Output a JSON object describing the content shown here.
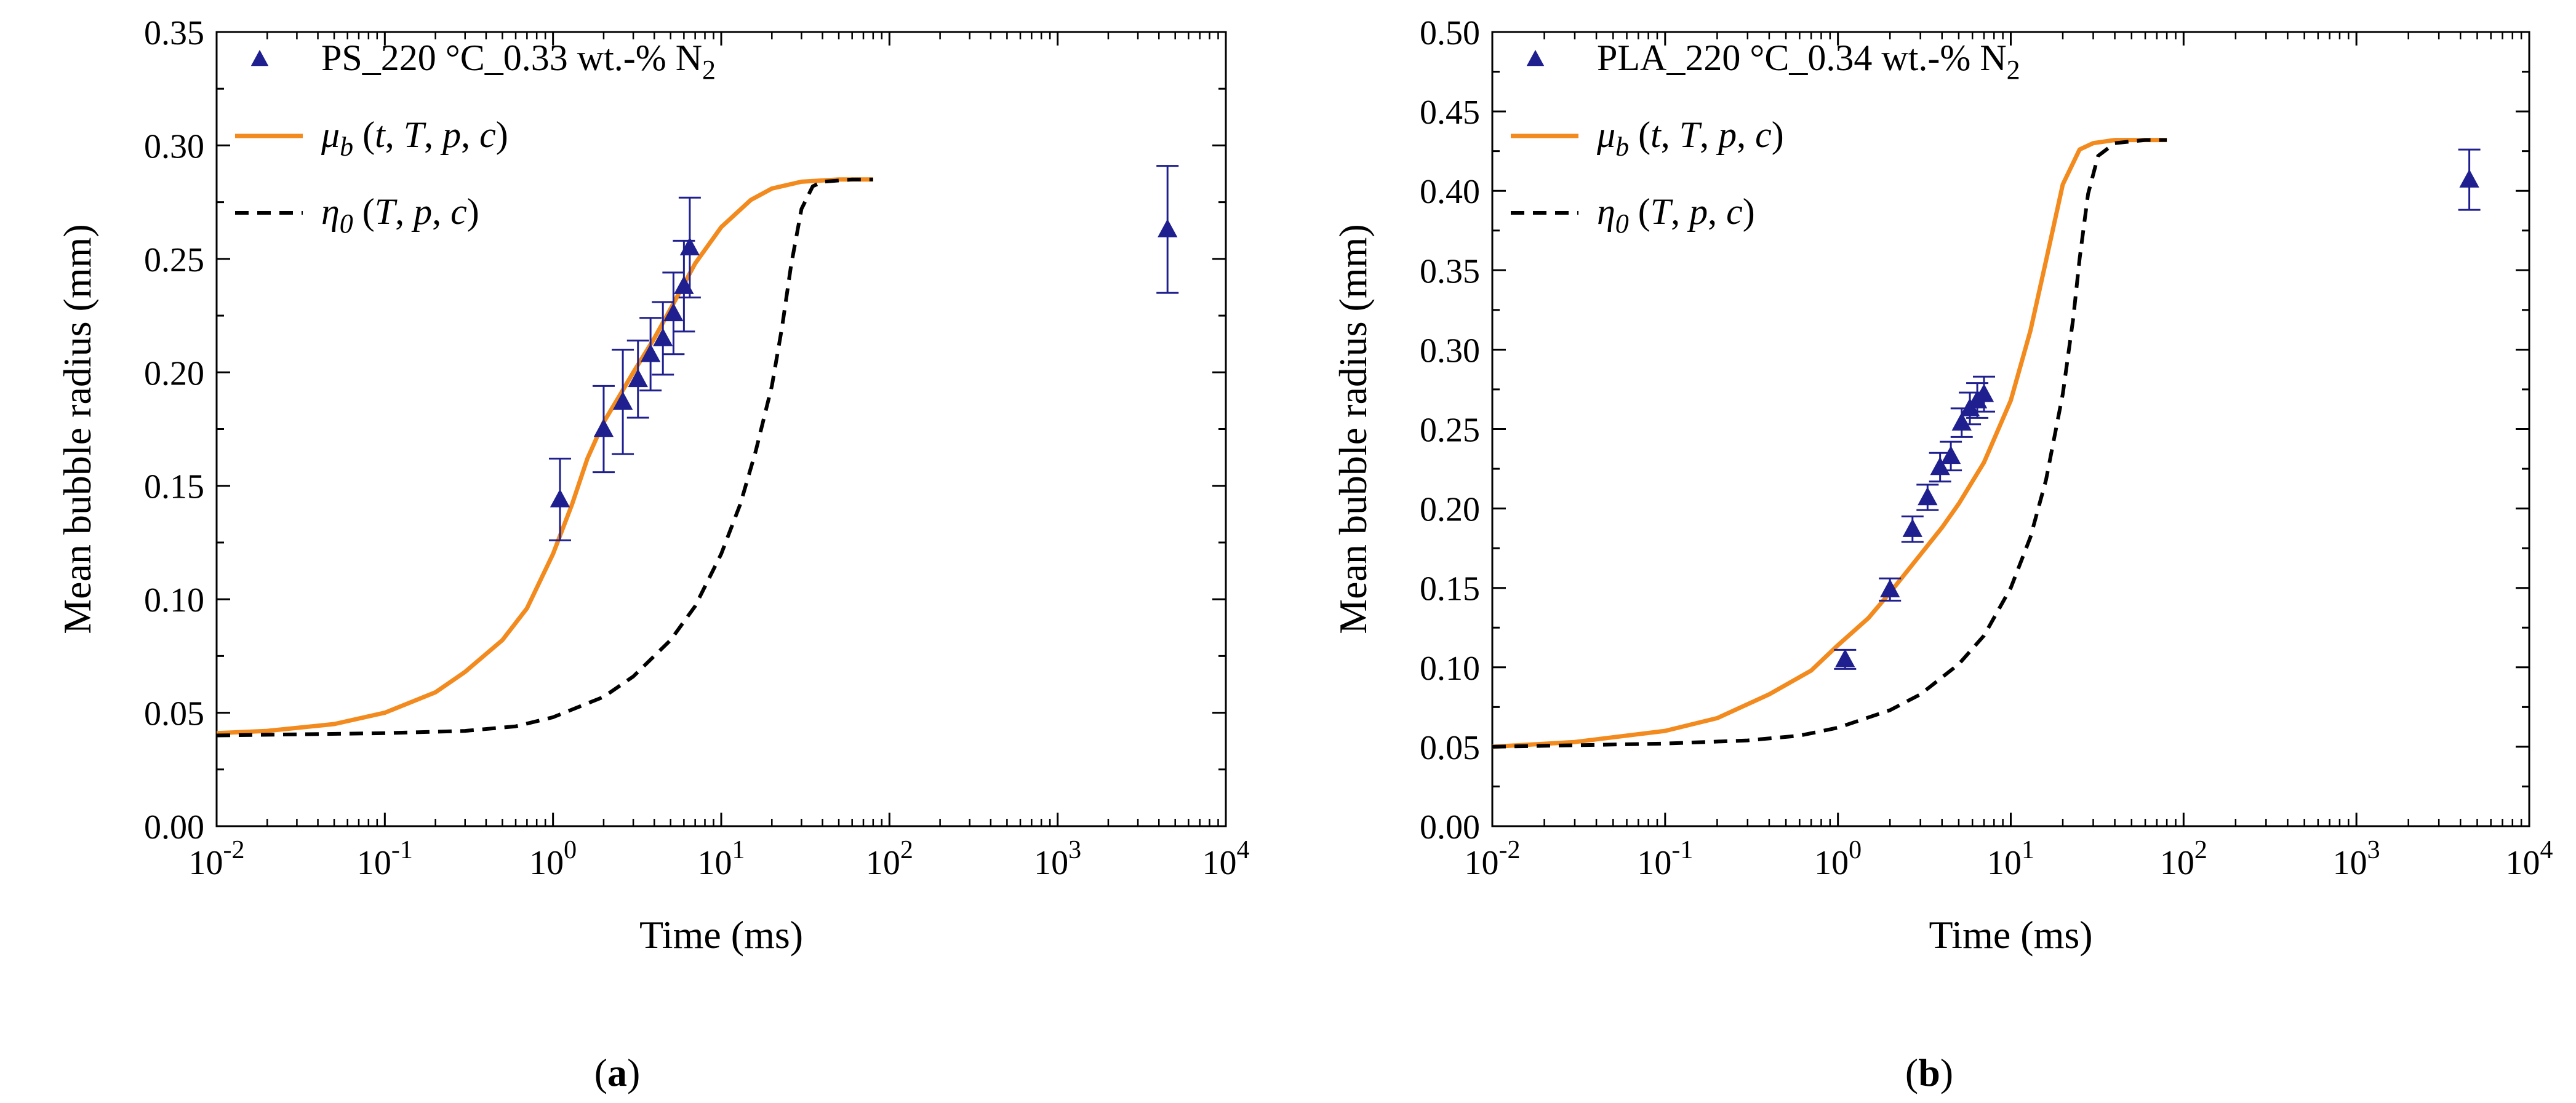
{
  "chart_data": [
    {
      "type": "scatter",
      "panel_label": "a",
      "xlabel": "Time (ms)",
      "ylabel": "Mean bubble radius (mm)",
      "xscale": "log",
      "xlim": [
        0.01,
        10000
      ],
      "ylim": [
        0,
        0.35
      ],
      "x_ticks": [
        0.01,
        0.1,
        1,
        10,
        100,
        1000,
        10000
      ],
      "y_ticks": [
        0.0,
        0.05,
        0.1,
        0.15,
        0.2,
        0.25,
        0.3,
        0.35
      ],
      "y_tick_labels": [
        "0.00",
        "0.05",
        "0.10",
        "0.15",
        "0.20",
        "0.25",
        "0.30",
        "0.35"
      ],
      "legend_position": "top-left",
      "series": [
        {
          "name": "PS_220 °C_0.33 wt.-% N2",
          "kind": "points",
          "marker": "triangle",
          "color": "#1f1f8f",
          "x": [
            1.1,
            2.0,
            2.6,
            3.2,
            3.8,
            4.5,
            5.2,
            6.0,
            6.5,
            4500
          ],
          "y": [
            0.144,
            0.175,
            0.187,
            0.197,
            0.208,
            0.215,
            0.226,
            0.238,
            0.255,
            0.263
          ],
          "yerr": [
            0.018,
            0.019,
            0.023,
            0.017,
            0.016,
            0.016,
            0.018,
            0.02,
            0.022,
            0.028
          ]
        },
        {
          "name": "μb (t, T, p, c)",
          "kind": "line",
          "style": "solid",
          "color": "#f28a1e",
          "x": [
            0.01,
            0.02,
            0.05,
            0.1,
            0.2,
            0.3,
            0.5,
            0.7,
            1.0,
            1.3,
            1.6,
            2.0,
            2.5,
            3.0,
            4.0,
            5.0,
            7.0,
            10,
            15,
            20,
            30,
            50,
            80
          ],
          "y": [
            0.041,
            0.042,
            0.045,
            0.05,
            0.059,
            0.068,
            0.082,
            0.096,
            0.12,
            0.142,
            0.162,
            0.178,
            0.19,
            0.2,
            0.215,
            0.228,
            0.248,
            0.264,
            0.276,
            0.281,
            0.284,
            0.285,
            0.285
          ]
        },
        {
          "name": "η0 (T, p, c)",
          "kind": "line",
          "style": "dashed",
          "color": "#000000",
          "x": [
            0.01,
            0.1,
            0.3,
            0.6,
            1,
            2,
            3,
            5,
            7,
            10,
            13,
            16,
            20,
            23,
            26,
            30,
            35,
            40,
            60,
            80
          ],
          "y": [
            0.04,
            0.041,
            0.042,
            0.044,
            0.048,
            0.057,
            0.066,
            0.082,
            0.097,
            0.12,
            0.142,
            0.165,
            0.194,
            0.22,
            0.247,
            0.272,
            0.282,
            0.284,
            0.285,
            0.285
          ]
        }
      ]
    },
    {
      "type": "scatter",
      "panel_label": "b",
      "xlabel": "Time (ms)",
      "ylabel": "Mean bubble radius (mm)",
      "xscale": "log",
      "xlim": [
        0.01,
        10000
      ],
      "ylim": [
        0,
        0.5
      ],
      "x_ticks": [
        0.01,
        0.1,
        1,
        10,
        100,
        1000,
        10000
      ],
      "y_ticks": [
        0.0,
        0.05,
        0.1,
        0.15,
        0.2,
        0.25,
        0.3,
        0.35,
        0.4,
        0.45,
        0.5
      ],
      "y_tick_labels": [
        "0.00",
        "0.05",
        "0.10",
        "0.15",
        "0.20",
        "0.25",
        "0.30",
        "0.35",
        "0.40",
        "0.45",
        "0.50"
      ],
      "legend_position": "top-left",
      "series": [
        {
          "name": "PLA_220 °C_0.34 wt.-% N2",
          "kind": "points",
          "marker": "triangle",
          "color": "#1f1f8f",
          "x": [
            1.1,
            2.0,
            2.7,
            3.3,
            3.9,
            4.5,
            5.2,
            5.8,
            6.4,
            7.0,
            4500
          ],
          "y": [
            0.105,
            0.149,
            0.187,
            0.207,
            0.226,
            0.233,
            0.254,
            0.263,
            0.268,
            0.272,
            0.407
          ],
          "yerr": [
            0.006,
            0.007,
            0.008,
            0.008,
            0.009,
            0.009,
            0.009,
            0.01,
            0.011,
            0.011,
            0.019
          ]
        },
        {
          "name": "μb (t, T, p, c)",
          "kind": "line",
          "style": "solid",
          "color": "#f28a1e",
          "x": [
            0.01,
            0.03,
            0.1,
            0.2,
            0.4,
            0.7,
            1.0,
            1.5,
            2.0,
            3.0,
            4.0,
            5.0,
            7.0,
            10,
            13,
            16,
            20,
            25,
            30,
            40,
            80
          ],
          "y": [
            0.05,
            0.053,
            0.06,
            0.068,
            0.083,
            0.098,
            0.114,
            0.131,
            0.147,
            0.171,
            0.188,
            0.203,
            0.229,
            0.268,
            0.312,
            0.356,
            0.404,
            0.426,
            0.43,
            0.432,
            0.432
          ]
        },
        {
          "name": "η0 (T, p, c)",
          "kind": "line",
          "style": "dashed",
          "color": "#000000",
          "x": [
            0.01,
            0.1,
            0.3,
            0.6,
            1,
            2,
            3,
            5,
            7,
            10,
            13,
            16,
            20,
            23,
            25,
            28,
            32,
            40,
            60,
            80
          ],
          "y": [
            0.05,
            0.052,
            0.054,
            0.057,
            0.062,
            0.073,
            0.083,
            0.102,
            0.12,
            0.15,
            0.182,
            0.218,
            0.272,
            0.32,
            0.357,
            0.398,
            0.422,
            0.43,
            0.432,
            0.432
          ]
        }
      ]
    }
  ]
}
